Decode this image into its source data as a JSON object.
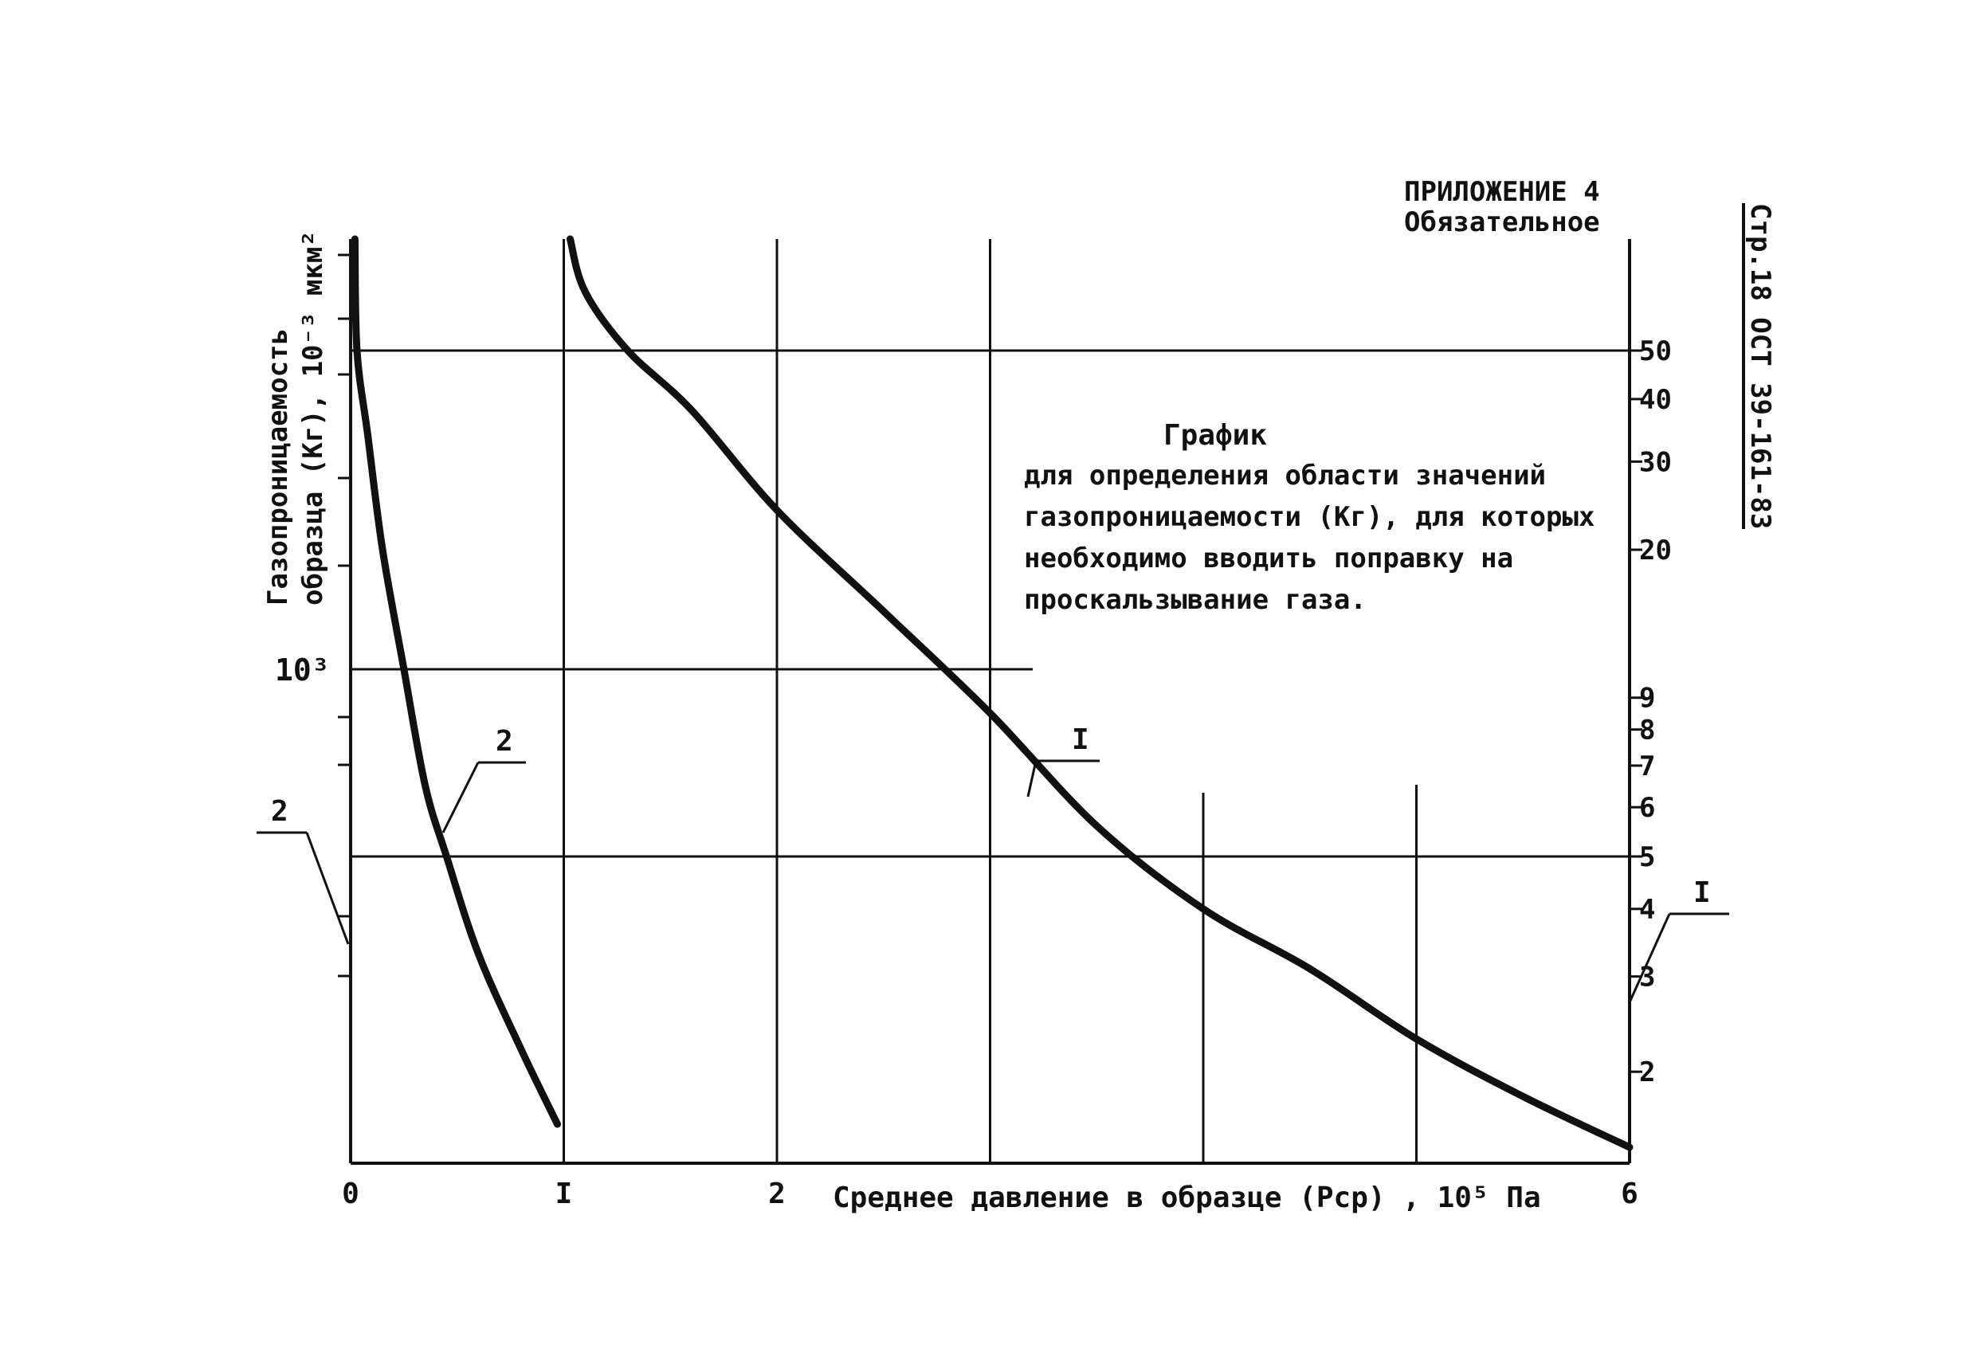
{
  "appendix": {
    "line1": "ПРИЛОЖЕНИЕ 4",
    "line2": "Обязательное"
  },
  "page_ref": "Стр.18 ОСТ 39-161-83",
  "chart_data": {
    "type": "line",
    "title": "График",
    "subtitle_lines": [
      "для определения области значений",
      "газопроницаемости (Кг), для которых",
      "необходимо вводить поправку на",
      "проскальзывание газа."
    ],
    "xlabel": "Среднее давление в образце (Рср) , 10⁵ Па",
    "ylabel_lines": [
      "Газопроницаемость",
      "образца (Кг), 10⁻³ мкм²"
    ],
    "xlim": [
      0,
      6
    ],
    "x_ticks": [
      {
        "value": 0,
        "label": "0"
      },
      {
        "value": 1,
        "label": "I"
      },
      {
        "value": 2,
        "label": "2"
      },
      {
        "value": 6,
        "label": "6"
      }
    ],
    "left_y_ticks": [
      {
        "label": "10³",
        "value": 1000
      }
    ],
    "right_y_ticks": [
      "50",
      "40",
      "30",
      "20",
      "9",
      "8",
      "7",
      "6",
      "5",
      "4",
      "3",
      "2"
    ],
    "grid": true,
    "series": [
      {
        "name": "I",
        "points": [
          {
            "x": 1.03,
            "y": 62
          },
          {
            "x": 1.1,
            "y": 56
          },
          {
            "x": 1.3,
            "y": 50
          },
          {
            "x": 1.6,
            "y": 38
          },
          {
            "x": 2.0,
            "y": 24
          },
          {
            "x": 2.5,
            "y": 14
          },
          {
            "x": 3.0,
            "y": 8.5
          },
          {
            "x": 3.5,
            "y": 5.6
          },
          {
            "x": 4.0,
            "y": 4.0
          },
          {
            "x": 4.5,
            "y": 3.1
          },
          {
            "x": 5.0,
            "y": 2.3
          },
          {
            "x": 5.5,
            "y": 1.8
          },
          {
            "x": 6.0,
            "y": 1.45
          }
        ]
      },
      {
        "name": "2",
        "points": [
          {
            "x": 0.02,
            "y": 62
          },
          {
            "x": 0.03,
            "y": 50
          },
          {
            "x": 0.08,
            "y": 34
          },
          {
            "x": 0.15,
            "y": 20
          },
          {
            "x": 0.25,
            "y": 10
          },
          {
            "x": 0.35,
            "y": 6.5
          },
          {
            "x": 0.45,
            "y": 5.0
          },
          {
            "x": 0.6,
            "y": 3.3
          },
          {
            "x": 0.8,
            "y": 2.2
          },
          {
            "x": 0.97,
            "y": 1.6
          }
        ]
      }
    ],
    "curve_labels": [
      {
        "series": "I",
        "text": "I"
      },
      {
        "series": "I",
        "text": "I"
      },
      {
        "series": "2",
        "text": "2"
      },
      {
        "series": "2",
        "text": "2"
      }
    ]
  }
}
